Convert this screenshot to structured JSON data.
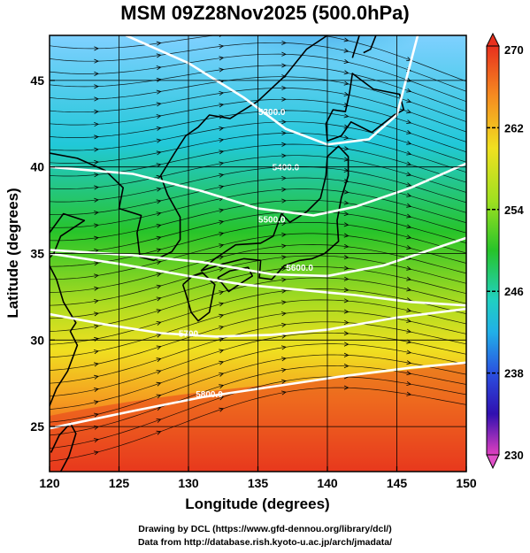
{
  "title": "MSM 09Z28Nov2025 (500.0hPa)",
  "map": {
    "xlabel": "Longitude (degrees)",
    "ylabel": "Latitude  (degrees)",
    "lon_range": [
      120,
      150
    ],
    "lat_range": [
      22.4,
      47.6
    ],
    "lon_ticks": [
      "120",
      "125",
      "130",
      "135",
      "140",
      "145",
      "150"
    ],
    "lat_ticks": [
      "25",
      "30",
      "35",
      "40",
      "45"
    ],
    "field": "temperature (K) shaded, geopotential height contours, wind streamlines",
    "contours": [
      {
        "label": "5300.0"
      },
      {
        "label": "5400.0"
      },
      {
        "label": "5500.0"
      },
      {
        "label": "5600.0"
      },
      {
        "label": "5700"
      },
      {
        "label": "5800.0"
      }
    ]
  },
  "colorbar": {
    "min": 230,
    "max": 270,
    "tick_labels": [
      "270",
      "262",
      "254",
      "246",
      "238",
      "230"
    ]
  },
  "credits": {
    "line1": "Drawing by DCL (https://www.gfd-dennou.org/library/dcl/)",
    "line2": "Data from http://database.rish.kyoto-u.ac.jp/arch/jmadata/"
  },
  "colors": {
    "cold": "#2a1fc8",
    "cyan": "#21c8d8",
    "green": "#27c42a",
    "yellow": "#f0e020",
    "orange": "#f59a20",
    "red": "#e8301e",
    "contour": "#ffffff",
    "streamline": "#000000"
  }
}
